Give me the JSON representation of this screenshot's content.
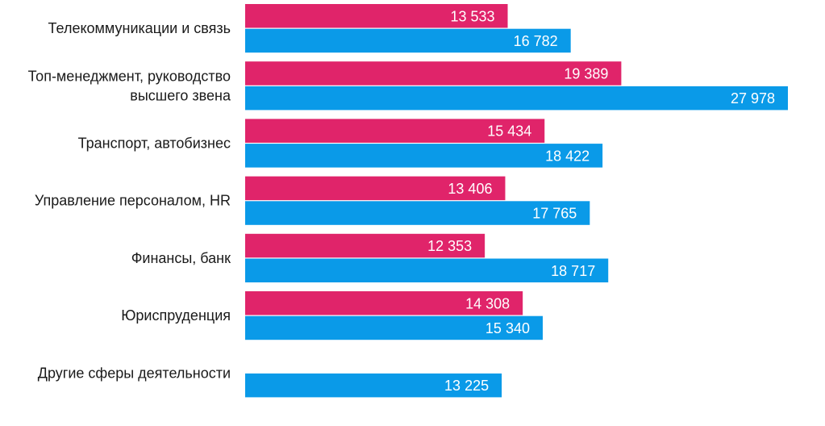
{
  "chart_data": {
    "type": "bar",
    "orientation": "horizontal",
    "categories": [
      [
        "Телекоммуникации и связь"
      ],
      [
        "Топ-менеджмент, руководство",
        "высшего звена"
      ],
      [
        "Транспорт, автобизнес"
      ],
      [
        "Управление персоналом, HR"
      ],
      [
        "Финансы, банк"
      ],
      [
        "Юриспруденция"
      ],
      [
        "Другие сферы деятельности"
      ]
    ],
    "series": [
      {
        "color": "#e0246a",
        "values": [
          13533,
          19389,
          15434,
          13406,
          12353,
          14308,
          null
        ],
        "labels": [
          "13 533",
          "19 389",
          "15 434",
          "13 406",
          "12 353",
          "14 308",
          null
        ]
      },
      {
        "color": "#0a9ae8",
        "values": [
          16782,
          27978,
          18422,
          17765,
          18717,
          15340,
          13225
        ],
        "labels": [
          "16 782",
          "27 978",
          "18 422",
          "17 765",
          "18 717",
          "15 340",
          "13 225"
        ]
      }
    ],
    "xlim": [
      0,
      28000
    ],
    "grid": false,
    "legend": "none"
  }
}
